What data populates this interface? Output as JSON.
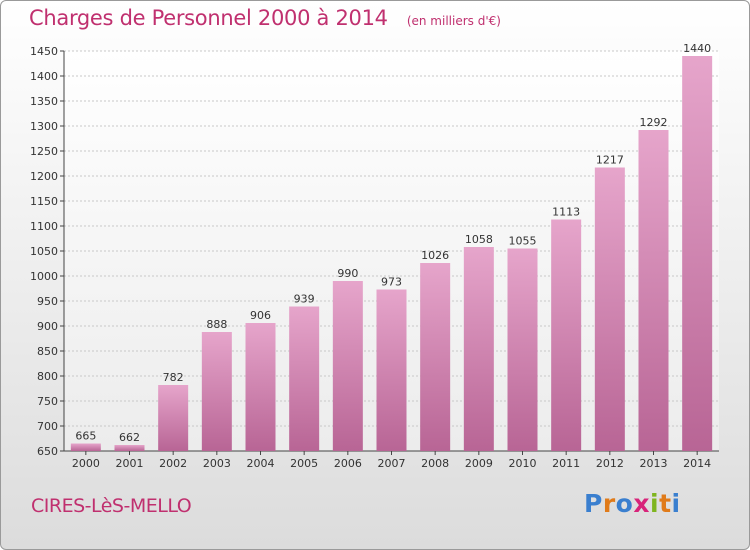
{
  "title": "Charges de Personnel 2000 à 2014",
  "unit_note": "(en milliers d'€)",
  "commune": "CIRES-LèS-MELLO",
  "logo": {
    "text": "Proxiti",
    "letters": [
      {
        "ch": "P",
        "color": "#3a7fcf"
      },
      {
        "ch": "r",
        "color": "#e07b1a"
      },
      {
        "ch": "o",
        "color": "#3a7fcf"
      },
      {
        "ch": "x",
        "color": "#d8247a"
      },
      {
        "ch": "i",
        "color": "#7fb51f"
      },
      {
        "ch": "t",
        "color": "#e07b1a"
      },
      {
        "ch": "i",
        "color": "#3a7fcf"
      }
    ]
  },
  "colors": {
    "title": "#c0306f",
    "bar_top": "#e6a5cb",
    "bar_bottom": "#b86595",
    "grid": "#c8c8c8"
  },
  "chart_data": {
    "type": "bar",
    "categories": [
      "2000",
      "2001",
      "2002",
      "2003",
      "2004",
      "2005",
      "2006",
      "2007",
      "2008",
      "2009",
      "2010",
      "2011",
      "2012",
      "2013",
      "2014"
    ],
    "values": [
      665,
      662,
      782,
      888,
      906,
      939,
      990,
      973,
      1026,
      1058,
      1055,
      1113,
      1217,
      1292,
      1440
    ],
    "ylim": [
      650,
      1450
    ],
    "yticks": [
      650,
      700,
      750,
      800,
      850,
      900,
      950,
      1000,
      1050,
      1100,
      1150,
      1200,
      1250,
      1300,
      1350,
      1400,
      1450
    ],
    "grid": true
  }
}
